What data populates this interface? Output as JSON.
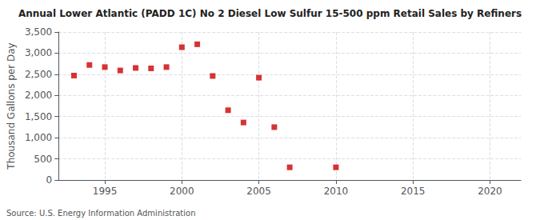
{
  "chart_data": {
    "type": "scatter",
    "title": "Annual Lower Atlantic (PADD 1C) No 2 Diesel Low Sulfur 15-500 ppm Retail Sales by Refiners",
    "ylabel": "Thousand Gallons per Day",
    "annotations": [
      "Source: U.S. Energy Information Administration"
    ],
    "x": [
      1993,
      1994,
      1995,
      1996,
      1997,
      1998,
      1999,
      2000,
      2001,
      2002,
      2003,
      2004,
      2005,
      2006,
      2007,
      2010
    ],
    "values": [
      2470,
      2720,
      2670,
      2590,
      2650,
      2640,
      2670,
      3140,
      3210,
      2460,
      1650,
      1360,
      2420,
      1250,
      300,
      300
    ],
    "color": "#cc0000",
    "marker": "square",
    "xlim": [
      1992,
      2022
    ],
    "xticks": [
      1995,
      2000,
      2005,
      2010,
      2015,
      2020
    ],
    "ylim": [
      0,
      3500
    ],
    "yticks": [
      0,
      500,
      {
        "value": 1000,
        "label": "1,000"
      },
      {
        "value": 1500,
        "label": "1,500"
      },
      {
        "value": 2000,
        "label": "2,000"
      },
      {
        "value": 2500,
        "label": "2,500"
      },
      {
        "value": 3000,
        "label": "3,000"
      },
      {
        "value": 3500,
        "label": "3,500"
      }
    ],
    "grid": true
  }
}
